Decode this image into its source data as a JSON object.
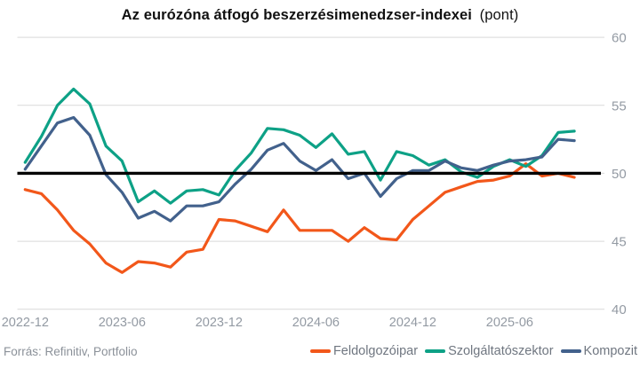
{
  "title": {
    "main": "Az eurózóna átfogó beszerzésimenedzser-indexei",
    "unit": "(pont)"
  },
  "source": "Forrás: Refinitiv, Portfolio",
  "chart_data": {
    "type": "line",
    "title": "Az eurózóna átfogó beszerzésimenedzser-indexei (pont)",
    "months": [
      "2022-12",
      "2023-01",
      "2023-02",
      "2023-03",
      "2023-04",
      "2023-05",
      "2023-06",
      "2023-07",
      "2023-08",
      "2023-09",
      "2023-10",
      "2023-11",
      "2023-12",
      "2024-01",
      "2024-02",
      "2024-03",
      "2024-04",
      "2024-05",
      "2024-06",
      "2024-07",
      "2024-08",
      "2024-09",
      "2024-10",
      "2024-11",
      "2024-12",
      "2025-01",
      "2025-02",
      "2025-03",
      "2025-04",
      "2025-05",
      "2025-06",
      "2025-07",
      "2025-08",
      "2025-09",
      "2025-10"
    ],
    "series": [
      {
        "name": "Feldolgozóipar",
        "key": "feldolgozoipar",
        "color": "#f2571a",
        "values": [
          48.8,
          48.5,
          47.3,
          45.8,
          44.8,
          43.4,
          42.7,
          43.5,
          43.4,
          43.1,
          44.2,
          44.4,
          46.6,
          46.5,
          46.1,
          45.7,
          47.3,
          45.8,
          45.8,
          45.8,
          45.0,
          46.0,
          45.2,
          45.1,
          46.6,
          47.6,
          48.6,
          49.0,
          49.4,
          49.5,
          49.8,
          50.7,
          49.8,
          50.0,
          49.7
        ]
      },
      {
        "name": "Szolgáltatószektor",
        "key": "szolgaltatoszektor",
        "color": "#0da186",
        "values": [
          50.8,
          52.7,
          55.0,
          56.2,
          55.1,
          52.0,
          50.9,
          47.9,
          48.7,
          47.8,
          48.7,
          48.8,
          48.4,
          50.2,
          51.5,
          53.3,
          53.2,
          52.8,
          51.9,
          52.9,
          51.4,
          51.6,
          49.5,
          51.6,
          51.3,
          50.6,
          51.0,
          50.1,
          49.7,
          50.5,
          51.0,
          50.5,
          51.3,
          53.0,
          53.1
        ]
      },
      {
        "name": "Kompozit",
        "key": "kompozit",
        "color": "#42618c",
        "values": [
          50.3,
          52.0,
          53.7,
          54.1,
          52.8,
          49.9,
          48.6,
          46.7,
          47.2,
          46.5,
          47.6,
          47.6,
          47.9,
          49.2,
          50.3,
          51.7,
          52.2,
          50.9,
          50.2,
          51.0,
          49.6,
          50.0,
          48.3,
          49.6,
          50.2,
          50.2,
          50.9,
          50.4,
          50.2,
          50.6,
          50.9,
          51.0,
          51.2,
          52.5,
          52.4
        ]
      }
    ],
    "x_tick_labels": [
      "2022-12",
      "2023-06",
      "2023-12",
      "2024-06",
      "2024-12",
      "2025-06"
    ],
    "y_ticks": [
      40,
      45,
      50,
      55,
      60
    ],
    "ylim": [
      40,
      60
    ],
    "baseline": 50,
    "baseline_color": "#000000",
    "grid": "horizontal",
    "grid_color": "#d9d9d9",
    "axis_label_color": "#939aa3",
    "legend_text_color": "#6f7680",
    "y_axis_side": "right",
    "legend_position": "bottom-right"
  }
}
